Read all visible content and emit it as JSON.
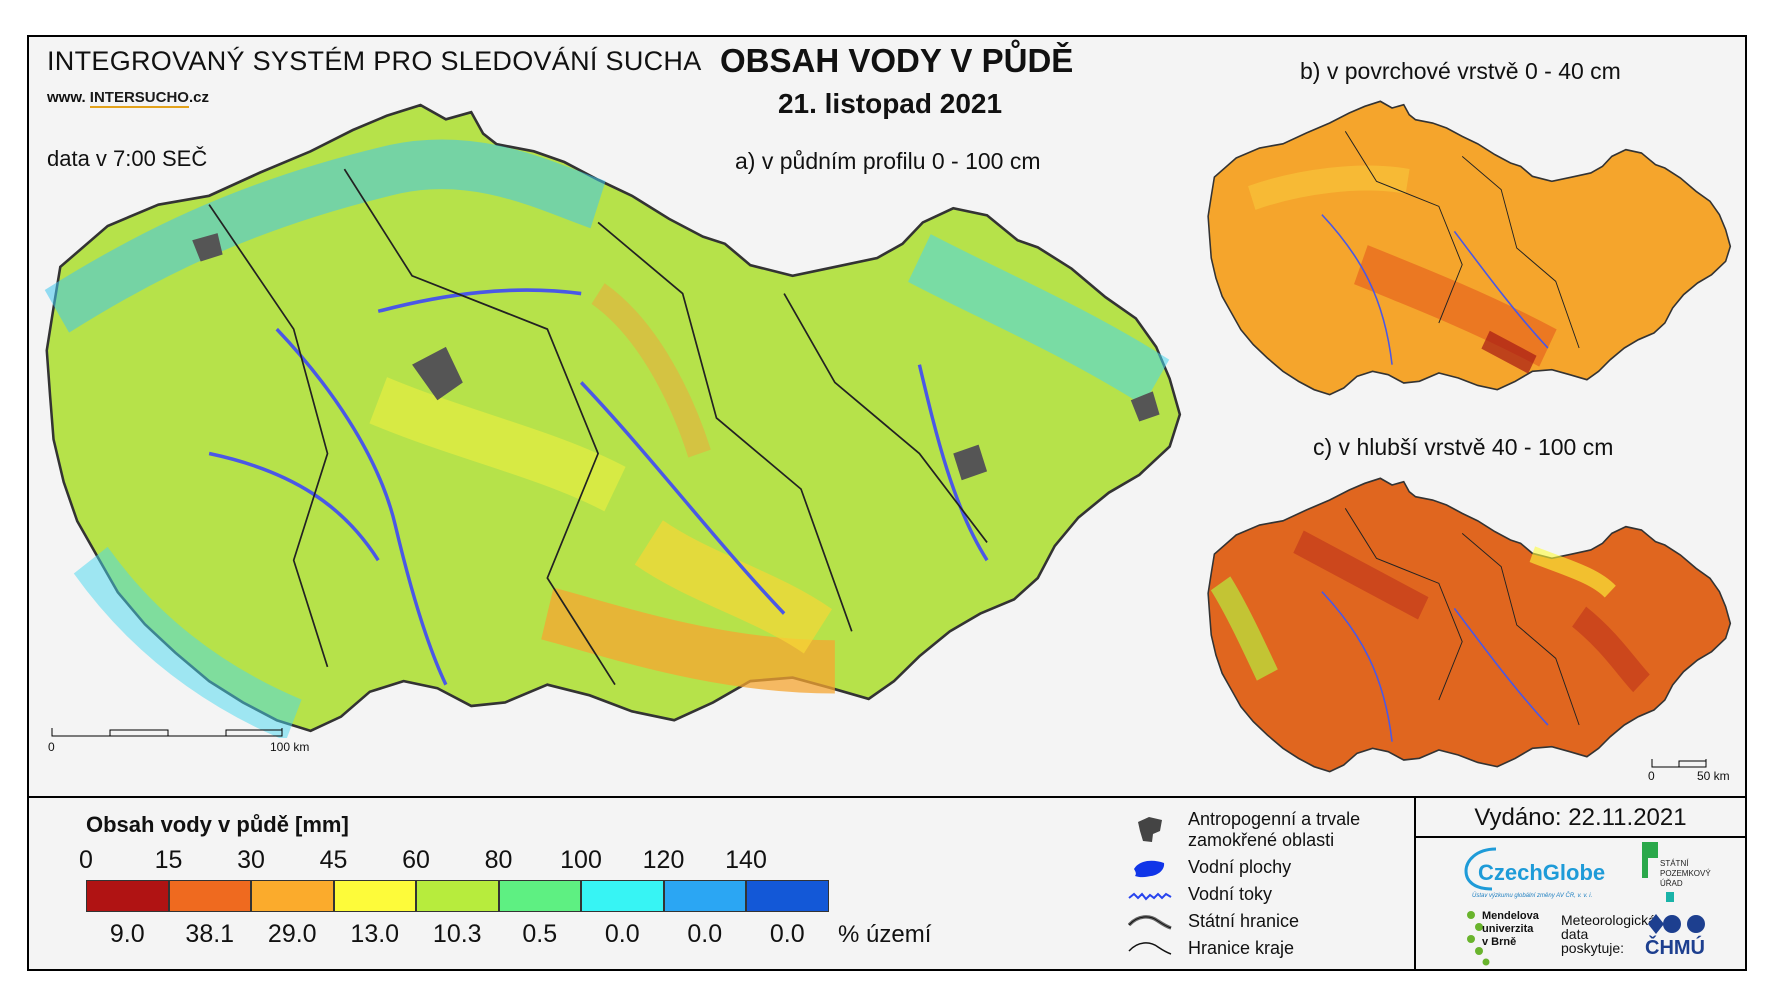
{
  "header": {
    "system_title": "INTEGROVANÝ SYSTÉM PRO SLEDOVÁNÍ SUCHA",
    "website_prefix": "www. ",
    "website_hl": "INTERSUCHO",
    "website_suffix": ".cz",
    "data_time": "data v 7:00 SEČ",
    "main_title": "OBSAH VODY V PŮDĚ",
    "main_date": "21. listopad 2021"
  },
  "maps": {
    "a_label": "a) v půdním profilu 0 - 100 cm",
    "b_label": "b) v povrchové vrstvě 0 - 40 cm",
    "c_label": "c) v hlubší vrstvě 40 - 100 cm",
    "scale_main": [
      "0",
      "100 km"
    ],
    "scale_small": [
      "0",
      "50 km"
    ],
    "fill_a": "#b6e24a",
    "fill_b": "#f5a52c",
    "fill_c": "#e0661f",
    "water_color": "#3f56e8",
    "border_color": "#222222"
  },
  "legend": {
    "title": "Obsah vody v půdě  [mm]",
    "ticks": [
      "0",
      "15",
      "30",
      "45",
      "60",
      "80",
      "100",
      "120",
      "140"
    ],
    "classes": [
      {
        "color": "#b01313",
        "pct": "9.0"
      },
      {
        "color": "#ef6a1f",
        "pct": "38.1"
      },
      {
        "color": "#fbab2c",
        "pct": "29.0"
      },
      {
        "color": "#fdfb3a",
        "pct": "13.0"
      },
      {
        "color": "#b7ec3d",
        "pct": "10.3"
      },
      {
        "color": "#5ef082",
        "pct": "0.5"
      },
      {
        "color": "#37f4f4",
        "pct": "0.0"
      },
      {
        "color": "#2ba6f3",
        "pct": "0.0"
      },
      {
        "color": "#1358d7",
        "pct": "0.0"
      }
    ],
    "pct_unit": "% území",
    "symbols": [
      {
        "icon": "urban-area-icon",
        "text": "Antropogenní a trvale\nzamokřené oblasti"
      },
      {
        "icon": "water-body-icon",
        "text": "Vodní plochy"
      },
      {
        "icon": "river-icon",
        "text": "Vodní toky"
      },
      {
        "icon": "state-border-icon",
        "text": "Státní hranice"
      },
      {
        "icon": "region-border-icon",
        "text": "Hranice kraje"
      }
    ]
  },
  "footer": {
    "issued": "Vydáno: 22.11.2021",
    "czechglobe": "CzechGlobe",
    "czechglobe_sub": "Ústav výzkumu globální změny AV ČR, v. v. i.",
    "spu": "STÁTNÍ\nPOZEMKOVÝ\nÚŘAD",
    "mendel": "Mendelova\nuniverzita\nv Brně",
    "meteo": "Meteorologická\ndata\nposkytuje:",
    "chmu": "ČHMÚ"
  }
}
